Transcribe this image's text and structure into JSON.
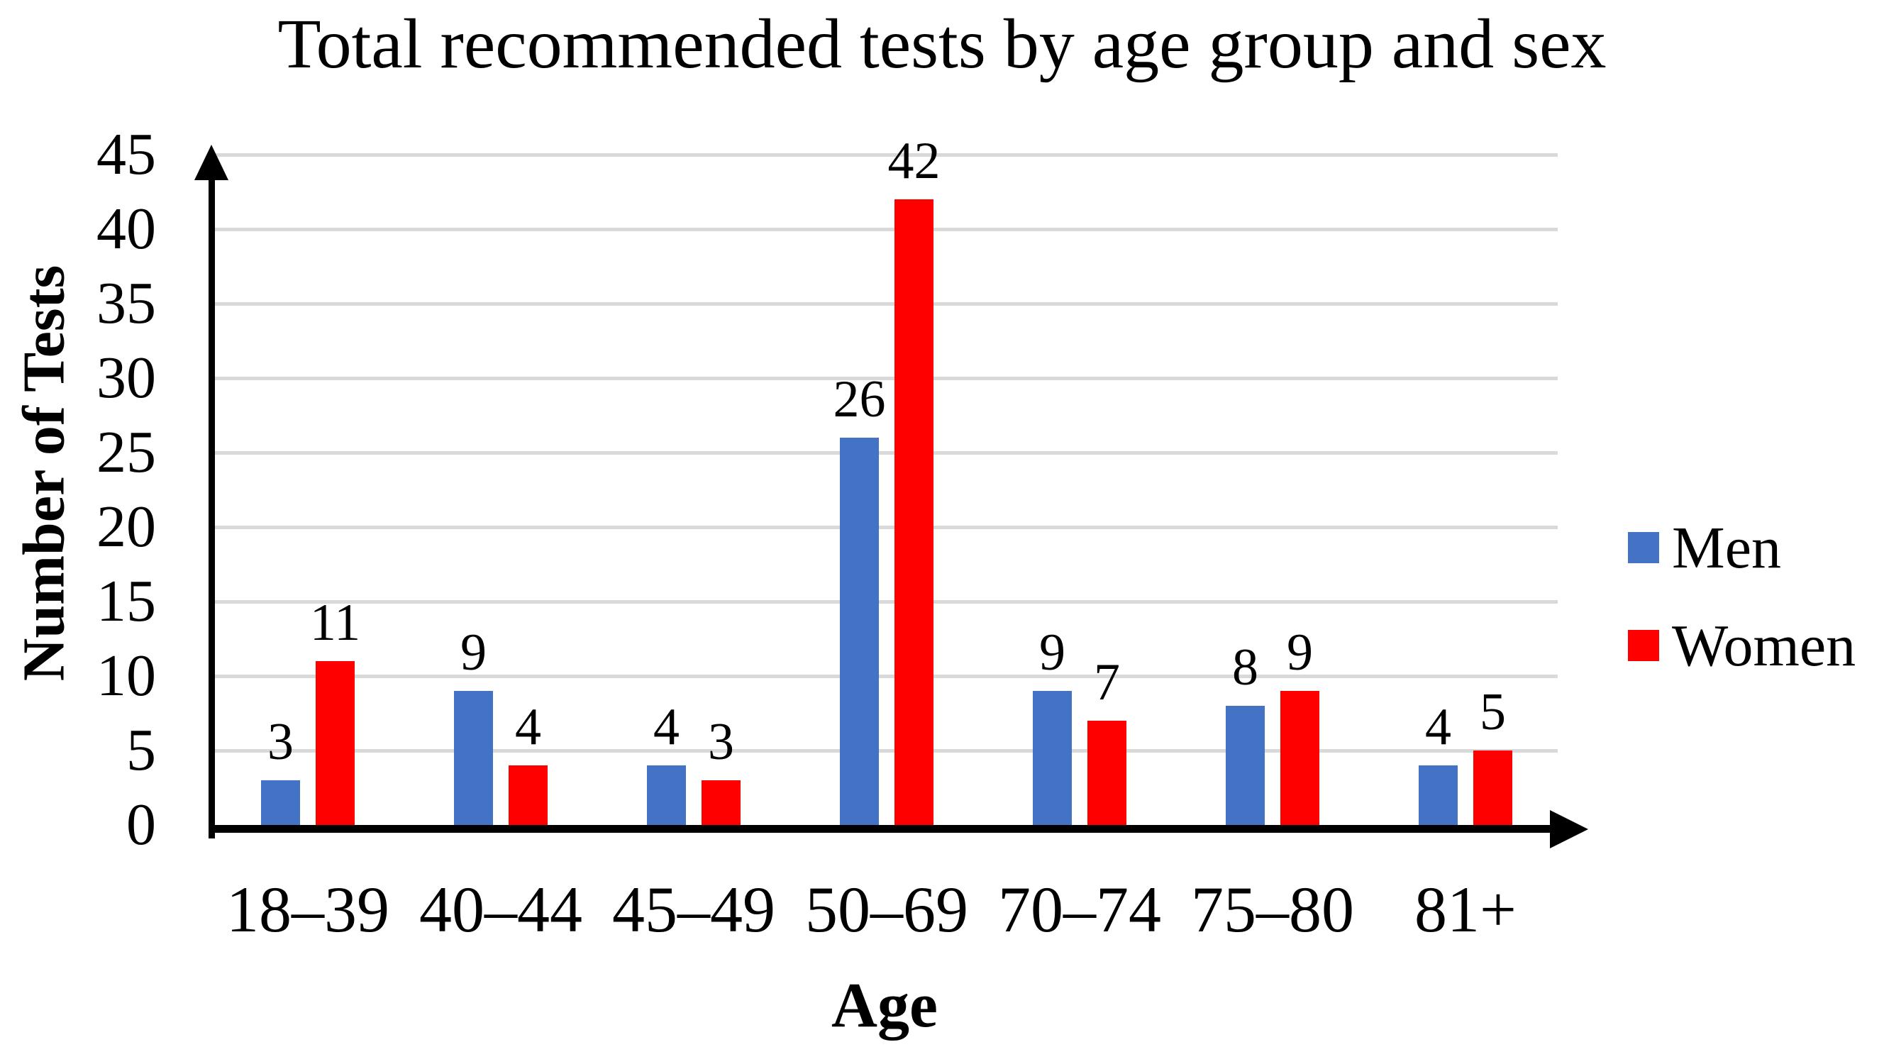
{
  "chart_data": {
    "type": "bar",
    "title": "Total recommended tests by age group and sex",
    "xlabel": "Age",
    "ylabel": "Number of Tests",
    "categories": [
      "18–39",
      "40–44",
      "45–49",
      "50–69",
      "70–74",
      "75–80",
      "81+"
    ],
    "series": [
      {
        "name": "Men",
        "color": "#4472C4",
        "values": [
          3,
          9,
          4,
          26,
          9,
          8,
          4
        ]
      },
      {
        "name": "Women",
        "color": "#FF0000",
        "values": [
          11,
          4,
          3,
          42,
          7,
          9,
          5
        ]
      }
    ],
    "ylim": [
      0,
      45
    ],
    "yticks": [
      0,
      5,
      10,
      15,
      20,
      25,
      30,
      35,
      40,
      45
    ],
    "grid": true,
    "gridline_color": "#D9D9D9",
    "axis_color": "#000000",
    "data_labels": true,
    "legend_position": "right"
  }
}
